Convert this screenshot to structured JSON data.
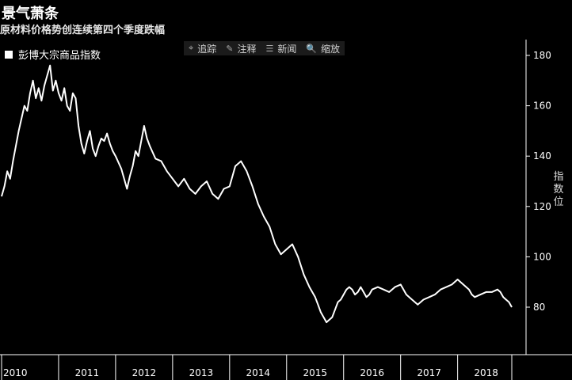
{
  "title": "景气萧条",
  "subtitle": "原材料价格势创连续第四个季度跌幅",
  "toolbar": [
    {
      "icon": "crosshair-icon",
      "glyph": "⌖",
      "label": "追踪"
    },
    {
      "icon": "pencil-icon",
      "glyph": "✎",
      "label": "注释"
    },
    {
      "icon": "news-icon",
      "glyph": "☰",
      "label": "新闻"
    },
    {
      "icon": "zoom-icon",
      "glyph": "🔍",
      "label": "缩放"
    }
  ],
  "colors": {
    "background": "#000000",
    "line": "#ffffff",
    "axis": "#ffffff"
  },
  "chart_data": {
    "type": "line",
    "title": "景气萧条",
    "subtitle": "原材料价格势创连续第四个季度跌幅",
    "ylabel": "指数位",
    "xlabel": "",
    "legend": "top-left",
    "grid": false,
    "ylim": [
      62,
      186
    ],
    "xlim": [
      2010.0,
      2018.95
    ],
    "yticks": [
      80,
      100,
      120,
      140,
      160,
      180
    ],
    "xticks": [
      "2010",
      "2011",
      "2012",
      "2013",
      "2014",
      "2015",
      "2016",
      "2017",
      "2018"
    ],
    "series": [
      {
        "name": "彭博大宗商品指数",
        "x": [
          2010.0,
          2010.05,
          2010.1,
          2010.15,
          2010.2,
          2010.25,
          2010.3,
          2010.35,
          2010.4,
          2010.45,
          2010.5,
          2010.55,
          2010.6,
          2010.65,
          2010.7,
          2010.75,
          2010.8,
          2010.85,
          2010.9,
          2010.95,
          2011.0,
          2011.05,
          2011.1,
          2011.15,
          2011.2,
          2011.25,
          2011.3,
          2011.35,
          2011.4,
          2011.45,
          2011.5,
          2011.55,
          2011.6,
          2011.65,
          2011.7,
          2011.75,
          2011.8,
          2011.85,
          2011.9,
          2011.95,
          2012.0,
          2012.1,
          2012.2,
          2012.25,
          2012.3,
          2012.35,
          2012.4,
          2012.45,
          2012.5,
          2012.55,
          2012.6,
          2012.7,
          2012.8,
          2012.9,
          2013.0,
          2013.1,
          2013.2,
          2013.3,
          2013.4,
          2013.5,
          2013.6,
          2013.7,
          2013.8,
          2013.9,
          2014.0,
          2014.1,
          2014.2,
          2014.3,
          2014.4,
          2014.5,
          2014.6,
          2014.7,
          2014.8,
          2014.9,
          2015.0,
          2015.1,
          2015.2,
          2015.3,
          2015.4,
          2015.5,
          2015.55,
          2015.6,
          2015.65,
          2015.7,
          2015.75,
          2015.8,
          2015.85,
          2015.9,
          2015.95,
          2016.0,
          2016.05,
          2016.1,
          2016.15,
          2016.2,
          2016.25,
          2016.3,
          2016.35,
          2016.4,
          2016.45,
          2016.5,
          2016.6,
          2016.7,
          2016.8,
          2016.9,
          2017.0,
          2017.1,
          2017.2,
          2017.3,
          2017.4,
          2017.5,
          2017.6,
          2017.7,
          2017.8,
          2017.9,
          2018.0,
          2018.1,
          2018.2,
          2018.25,
          2018.3,
          2018.4,
          2018.5,
          2018.6,
          2018.7,
          2018.75,
          2018.8,
          2018.85,
          2018.9,
          2018.95
        ],
        "values": [
          124,
          128,
          134,
          131,
          138,
          144,
          150,
          155,
          160,
          158,
          165,
          170,
          163,
          167,
          162,
          168,
          172,
          176,
          166,
          170,
          165,
          162,
          167,
          160,
          158,
          165,
          163,
          152,
          145,
          141,
          146,
          150,
          143,
          140,
          144,
          147,
          146,
          149,
          145,
          142,
          140,
          135,
          127,
          132,
          136,
          142,
          140,
          146,
          152,
          147,
          144,
          139,
          138,
          134,
          131,
          128,
          131,
          127,
          125,
          128,
          130,
          125,
          123,
          127,
          128,
          136,
          138,
          134,
          128,
          121,
          116,
          112,
          105,
          101,
          103,
          105,
          100,
          93,
          88,
          84,
          81,
          78,
          76,
          74,
          75,
          76,
          79,
          82,
          83,
          85,
          87,
          88,
          87,
          85,
          86,
          88,
          86,
          84,
          85,
          87,
          88,
          87,
          86,
          88,
          89,
          85,
          83,
          81,
          83,
          84,
          85,
          87,
          88,
          89,
          91,
          89,
          87,
          85,
          84,
          85,
          86,
          86,
          87,
          86,
          84,
          83,
          82,
          80
        ]
      }
    ]
  }
}
